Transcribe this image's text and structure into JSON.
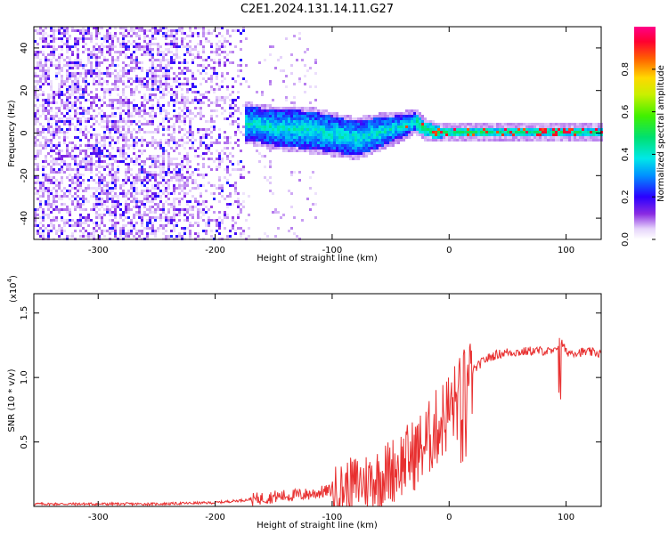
{
  "figure": {
    "title": "C2E1.2024.131.14.11.G27"
  },
  "colors": {
    "snr_line": "#e83030",
    "spectrogram_low": "#d9c2f5",
    "spectrogram_mid": "#6a00e8",
    "axes": "#000000"
  },
  "chart_data": [
    {
      "type": "heatmap",
      "title": "C2E1.2024.131.14.11.G27",
      "xlabel": "Height of straight line (km)",
      "ylabel": "Frequency (Hz)",
      "xlim": [
        -355,
        130
      ],
      "ylim": [
        -50,
        50
      ],
      "xticks": [
        -300,
        -200,
        -100,
        0,
        100
      ],
      "yticks": [
        -40,
        -20,
        0,
        20,
        40
      ],
      "xtick_labels": [
        "-300",
        "-200",
        "-100",
        "0",
        "100"
      ],
      "ytick_labels": [
        "-40",
        "-20",
        "0",
        "20",
        "40"
      ],
      "colorbar": {
        "label": "Normalized spectral amplitude",
        "range": [
          0,
          1
        ],
        "ticks": [
          0.0,
          0.2,
          0.4,
          0.6,
          0.8
        ],
        "tick_labels": [
          "0.0",
          "0.2",
          "0.4",
          "0.6",
          "0.8"
        ],
        "colormap": "rainbow (white-violet-blue-cyan-green-yellow-red-magenta)"
      },
      "description_points": {
        "noise_region_x": [
          -355,
          -175
        ],
        "signal_band_x": [
          -175,
          130
        ],
        "signal_band_center_hz": [
          [
            -170,
            5
          ],
          [
            -150,
            3
          ],
          [
            -120,
            2
          ],
          [
            -100,
            0
          ],
          [
            -80,
            -2
          ],
          [
            -60,
            1
          ],
          [
            -40,
            4
          ],
          [
            -30,
            6
          ],
          [
            -20,
            2
          ],
          [
            -10,
            1
          ],
          [
            0,
            1
          ],
          [
            20,
            1
          ],
          [
            50,
            1
          ],
          [
            80,
            1
          ],
          [
            100,
            1
          ],
          [
            130,
            1
          ]
        ],
        "signal_band_halfwidth_hz": [
          [
            -170,
            8
          ],
          [
            -120,
            9
          ],
          [
            -80,
            8
          ],
          [
            -60,
            7
          ],
          [
            -30,
            4
          ],
          [
            0,
            2
          ],
          [
            130,
            2
          ]
        ]
      }
    },
    {
      "type": "line",
      "xlabel": "Height of straight line (km)",
      "ylabel": "SNR (10 * v/v)",
      "y_multiplier_label": "(x10",
      "y_multiplier_exponent": "4",
      "y_multiplier_close": ")",
      "xlim": [
        -355,
        130
      ],
      "ylim": [
        0,
        1.65
      ],
      "xticks": [
        -300,
        -200,
        -100,
        0,
        100
      ],
      "xtick_labels": [
        "-300",
        "-200",
        "-100",
        "0",
        "100"
      ],
      "yticks": [
        0.5,
        1.0,
        1.5
      ],
      "ytick_labels": [
        "0.5",
        "1.0",
        "1.5"
      ],
      "series": [
        {
          "x": [
            -355,
            -300,
            -250,
            -200,
            -175,
            -150,
            -120,
            -100,
            -90,
            -80,
            -70,
            -60,
            -50,
            -40,
            -30,
            -20,
            -10,
            0,
            10,
            20,
            30,
            40,
            50,
            60,
            70,
            80,
            90,
            95,
            100,
            110,
            120,
            130
          ],
          "y": [
            0.02,
            0.02,
            0.02,
            0.03,
            0.05,
            0.08,
            0.1,
            0.13,
            0.16,
            0.2,
            0.22,
            0.25,
            0.3,
            0.37,
            0.43,
            0.52,
            0.65,
            0.78,
            0.88,
            1.05,
            1.14,
            1.18,
            1.2,
            1.2,
            1.21,
            1.21,
            1.2,
            1.3,
            1.2,
            1.2,
            1.2,
            1.19
          ]
        }
      ]
    }
  ]
}
